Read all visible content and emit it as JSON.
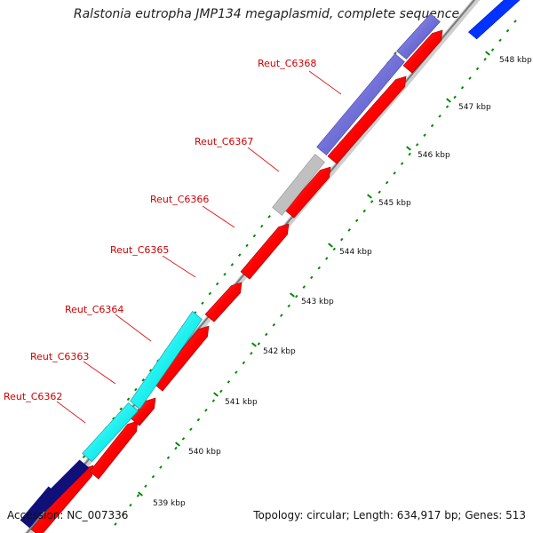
{
  "title": "Ralstonia eutropha JMP134 megaplasmid, complete sequence",
  "footer": {
    "accession": "Accession: NC_007336",
    "topology": "Topology: circular;",
    "length": "Length: 634,917 bp;",
    "genes": "Genes: 513"
  },
  "colors": {
    "cds_forward": "#ff0000",
    "cds_reverse_cyan": "#00ffff",
    "cds_reverse_purple": "#7070d8",
    "cds_reverse_navy": "#10107a",
    "cds_blue": "#0033ff",
    "pseudo_gray": "#c0c0c0",
    "backbone": "#999999",
    "ticks": "#008800",
    "gene_label": "#cc0000"
  },
  "gene_labels": [
    "Reut_C6362",
    "Reut_C6363",
    "Reut_C6364",
    "Reut_C6365",
    "Reut_C6366",
    "Reut_C6367",
    "Reut_C6368"
  ],
  "kbp_labels": [
    "539 kbp",
    "540 kbp",
    "541 kbp",
    "542 kbp",
    "543 kbp",
    "544 kbp",
    "545 kbp",
    "546 kbp",
    "547 kbp",
    "548 kbp"
  ]
}
